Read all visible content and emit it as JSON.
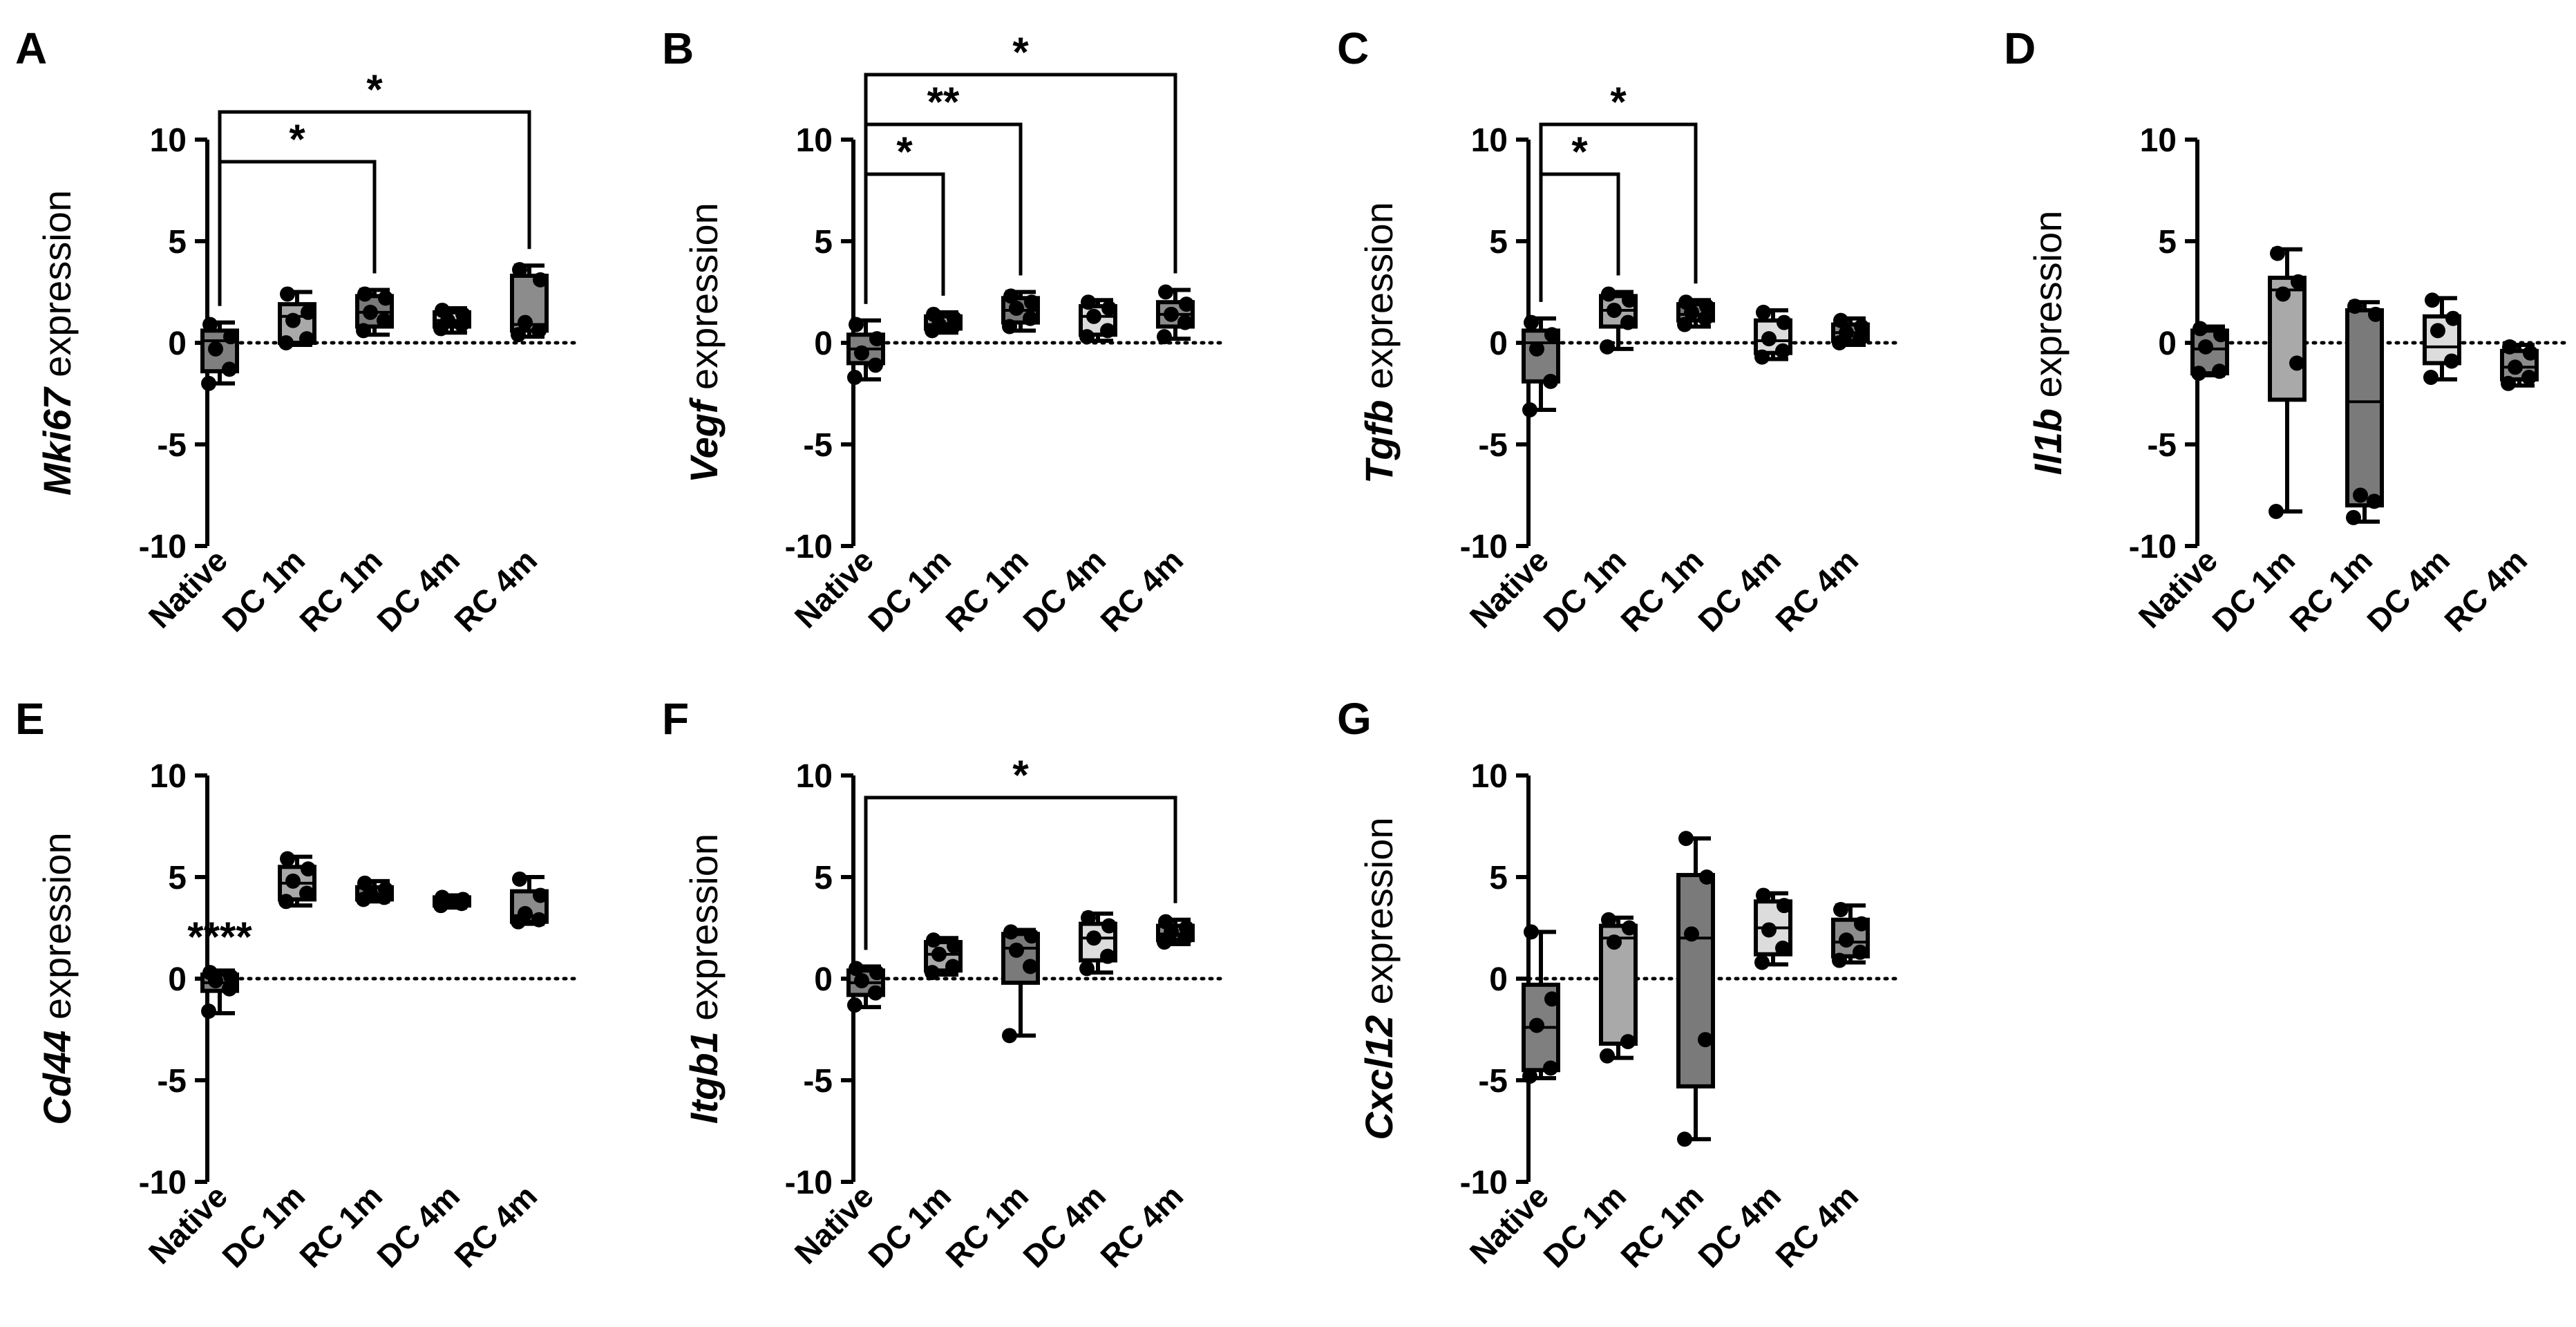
{
  "fills": {
    "Native": "#7f7f7f",
    "DC 1m": "#a9a9a9",
    "RC 1m": "#7a7a7a",
    "DC 4m": "#dcdcdc",
    "RC 4m": "#8c8c8c"
  },
  "chart_data": [
    {
      "type": "box",
      "panel": "A",
      "gene": "Mki67",
      "ylabel_suffix": " expression",
      "ylim": [
        -10,
        10
      ],
      "yticks": [
        10,
        5,
        0,
        -5,
        -10
      ],
      "categories": [
        "Native",
        "DC 1m",
        "RC 1m",
        "DC 4m",
        "RC 4m"
      ],
      "boxes": [
        {
          "min": -2.0,
          "q1": -1.4,
          "median": 0.1,
          "q3": 0.6,
          "max": 1.0,
          "points": [
            -2.0,
            -1.3,
            -0.3,
            0.3,
            0.9
          ]
        },
        {
          "min": -0.1,
          "q1": 0.0,
          "median": 1.3,
          "q3": 1.9,
          "max": 2.5,
          "points": [
            0.0,
            0.2,
            1.1,
            1.5,
            2.4
          ]
        },
        {
          "min": 0.4,
          "q1": 0.8,
          "median": 1.5,
          "q3": 2.3,
          "max": 2.6,
          "points": [
            0.6,
            1.1,
            1.5,
            2.2,
            2.4
          ]
        },
        {
          "min": 0.5,
          "q1": 0.8,
          "median": 1.1,
          "q3": 1.5,
          "max": 1.7,
          "points": [
            0.7,
            0.9,
            1.1,
            1.4,
            1.6
          ]
        },
        {
          "min": 0.3,
          "q1": 0.6,
          "median": 0.9,
          "q3": 3.3,
          "max": 3.8,
          "points": [
            0.4,
            0.6,
            1.0,
            3.1,
            3.6
          ]
        }
      ],
      "significance": [
        {
          "from": 0,
          "to": 2,
          "level": 6,
          "label": "*"
        },
        {
          "from": 0,
          "to": 4,
          "level": 10,
          "label": "*"
        }
      ]
    },
    {
      "type": "box",
      "panel": "B",
      "gene": "Vegf",
      "ylabel_suffix": " expression",
      "ylim": [
        -10,
        10
      ],
      "yticks": [
        10,
        5,
        0,
        -5,
        -10
      ],
      "categories": [
        "Native",
        "DC 1m",
        "RC 1m",
        "DC 4m",
        "RC 4m"
      ],
      "boxes": [
        {
          "min": -1.8,
          "q1": -1.0,
          "median": -0.3,
          "q3": 0.4,
          "max": 1.1,
          "points": [
            -1.7,
            -1.1,
            -0.5,
            0.2,
            0.9
          ]
        },
        {
          "min": 0.5,
          "q1": 0.7,
          "median": 0.9,
          "q3": 1.3,
          "max": 1.5,
          "points": [
            0.6,
            0.8,
            0.9,
            1.2,
            1.4
          ]
        },
        {
          "min": 0.6,
          "q1": 1.0,
          "median": 1.6,
          "q3": 2.2,
          "max": 2.5,
          "points": [
            0.8,
            1.2,
            1.7,
            2.0,
            2.3
          ]
        },
        {
          "min": 0.1,
          "q1": 0.4,
          "median": 1.3,
          "q3": 1.8,
          "max": 2.1,
          "points": [
            0.3,
            0.6,
            1.3,
            1.7,
            2.0
          ]
        },
        {
          "min": 0.2,
          "q1": 0.8,
          "median": 1.4,
          "q3": 2.0,
          "max": 2.6,
          "points": [
            0.3,
            1.0,
            1.4,
            1.9,
            2.5
          ]
        }
      ],
      "significance": [
        {
          "from": 0,
          "to": 1,
          "level": 5,
          "label": "*"
        },
        {
          "from": 0,
          "to": 2,
          "level": 9,
          "label": "**"
        },
        {
          "from": 0,
          "to": 4,
          "level": 13,
          "label": "*"
        }
      ]
    },
    {
      "type": "box",
      "panel": "C",
      "gene": "Tgfb",
      "ylabel_suffix": " expression",
      "ylim": [
        -10,
        10
      ],
      "yticks": [
        10,
        5,
        0,
        -5,
        -10
      ],
      "categories": [
        "Native",
        "DC 1m",
        "RC 1m",
        "DC 4m",
        "RC 4m"
      ],
      "boxes": [
        {
          "min": -3.3,
          "q1": -1.9,
          "median": 0.0,
          "q3": 0.6,
          "max": 1.2,
          "points": [
            -3.3,
            -1.9,
            -0.3,
            0.4,
            1.0
          ]
        },
        {
          "min": -0.3,
          "q1": 0.8,
          "median": 1.6,
          "q3": 2.3,
          "max": 2.5,
          "points": [
            -0.2,
            1.0,
            1.6,
            2.1,
            2.4
          ]
        },
        {
          "min": 0.8,
          "q1": 1.1,
          "median": 1.4,
          "q3": 1.9,
          "max": 2.1,
          "points": [
            0.9,
            1.2,
            1.5,
            1.8,
            2.0
          ]
        },
        {
          "min": -0.8,
          "q1": -0.5,
          "median": 0.1,
          "q3": 1.1,
          "max": 1.6,
          "points": [
            -0.7,
            -0.4,
            0.2,
            1.0,
            1.5
          ]
        },
        {
          "min": -0.1,
          "q1": 0.1,
          "median": 0.5,
          "q3": 0.9,
          "max": 1.2,
          "points": [
            0.0,
            0.2,
            0.5,
            0.8,
            1.1
          ]
        }
      ],
      "significance": [
        {
          "from": 0,
          "to": 1,
          "level": 5,
          "label": "*"
        },
        {
          "from": 0,
          "to": 2,
          "level": 9,
          "label": "*"
        }
      ]
    },
    {
      "type": "box",
      "panel": "D",
      "gene": "Il1b",
      "ylabel_suffix": " expression",
      "ylim": [
        -10,
        10
      ],
      "yticks": [
        10,
        5,
        0,
        -5,
        -10
      ],
      "categories": [
        "Native",
        "DC 1m",
        "RC 1m",
        "DC 4m",
        "RC 4m"
      ],
      "boxes": [
        {
          "min": -1.6,
          "q1": -1.5,
          "median": -0.3,
          "q3": 0.6,
          "max": 0.8,
          "points": [
            -1.5,
            -1.4,
            -0.2,
            0.4,
            0.7
          ]
        },
        {
          "min": -8.3,
          "q1": -2.8,
          "median": 2.6,
          "q3": 3.2,
          "max": 4.6,
          "points": [
            -8.3,
            -1.0,
            2.4,
            3.0,
            4.4
          ]
        },
        {
          "min": -8.8,
          "q1": -8.0,
          "median": -2.9,
          "q3": 1.6,
          "max": 2.0,
          "points": [
            -8.6,
            -7.8,
            -7.5,
            1.4,
            1.8
          ]
        },
        {
          "min": -1.8,
          "q1": -1.0,
          "median": -0.2,
          "q3": 1.3,
          "max": 2.2,
          "points": [
            -1.7,
            -0.9,
            0.6,
            1.2,
            2.1
          ]
        },
        {
          "min": -2.1,
          "q1": -1.8,
          "median": -1.2,
          "q3": -0.4,
          "max": -0.1,
          "points": [
            -2.0,
            -1.7,
            -1.2,
            -0.5,
            -0.2
          ]
        }
      ],
      "significance": []
    },
    {
      "type": "box",
      "panel": "E",
      "gene": "Cd44",
      "ylabel_suffix": " expression",
      "ylim": [
        -10,
        10
      ],
      "yticks": [
        10,
        5,
        0,
        -5,
        -10
      ],
      "categories": [
        "Native",
        "DC 1m",
        "RC 1m",
        "DC 4m",
        "RC 4m"
      ],
      "boxes": [
        {
          "min": -1.7,
          "q1": -0.6,
          "median": -0.2,
          "q3": 0.2,
          "max": 0.4,
          "points": [
            -1.6,
            -0.5,
            -0.1,
            0.1,
            0.3
          ]
        },
        {
          "min": 3.6,
          "q1": 3.9,
          "median": 4.7,
          "q3": 5.5,
          "max": 6.0,
          "points": [
            3.8,
            4.2,
            4.8,
            5.4,
            5.9
          ]
        },
        {
          "min": 3.8,
          "q1": 3.9,
          "median": 4.1,
          "q3": 4.5,
          "max": 4.8,
          "points": [
            3.9,
            4.0,
            4.2,
            4.4,
            4.7
          ]
        },
        {
          "min": 3.5,
          "q1": 3.6,
          "median": 3.8,
          "q3": 4.0,
          "max": 4.1,
          "points": [
            3.6,
            3.7,
            3.8,
            3.9,
            4.0
          ]
        },
        {
          "min": 2.7,
          "q1": 2.8,
          "median": 3.1,
          "q3": 4.3,
          "max": 5.0,
          "points": [
            2.8,
            2.9,
            3.2,
            4.1,
            4.9
          ]
        }
      ],
      "significance": [
        {
          "from": 0,
          "to": 0,
          "level": 0,
          "label": "****",
          "above_value": 0.4
        }
      ]
    },
    {
      "type": "box",
      "panel": "F",
      "gene": "Itgb1",
      "ylabel_suffix": " expression",
      "ylim": [
        -10,
        10
      ],
      "yticks": [
        10,
        5,
        0,
        -5,
        -10
      ],
      "categories": [
        "Native",
        "DC 1m",
        "RC 1m",
        "DC 4m",
        "RC 4m"
      ],
      "boxes": [
        {
          "min": -1.4,
          "q1": -0.8,
          "median": -0.2,
          "q3": 0.4,
          "max": 0.6,
          "points": [
            -1.3,
            -0.7,
            -0.1,
            0.3,
            0.5
          ]
        },
        {
          "min": 0.2,
          "q1": 0.4,
          "median": 1.2,
          "q3": 1.8,
          "max": 2.0,
          "points": [
            0.3,
            0.6,
            1.2,
            1.6,
            1.9
          ]
        },
        {
          "min": -2.8,
          "q1": -0.2,
          "median": 1.5,
          "q3": 2.2,
          "max": 2.4,
          "points": [
            -2.8,
            0.6,
            1.4,
            2.1,
            2.3
          ]
        },
        {
          "min": 0.3,
          "q1": 0.9,
          "median": 2.0,
          "q3": 2.7,
          "max": 3.2,
          "points": [
            0.5,
            1.1,
            2.0,
            2.6,
            3.0
          ]
        },
        {
          "min": 1.7,
          "q1": 1.9,
          "median": 2.2,
          "q3": 2.6,
          "max": 2.9,
          "points": [
            1.8,
            2.0,
            2.3,
            2.5,
            2.8
          ]
        }
      ],
      "significance": [
        {
          "from": 0,
          "to": 4,
          "level": 6,
          "label": "*"
        }
      ]
    },
    {
      "type": "box",
      "panel": "G",
      "gene": "Cxcl12",
      "ylabel_suffix": " expression",
      "ylim": [
        -10,
        10
      ],
      "yticks": [
        10,
        5,
        0,
        -5,
        -10
      ],
      "categories": [
        "Native",
        "DC 1m",
        "RC 1m",
        "DC 4m",
        "RC 4m"
      ],
      "boxes": [
        {
          "min": -4.9,
          "q1": -4.5,
          "median": -2.4,
          "q3": -0.3,
          "max": 2.3,
          "points": [
            -4.8,
            -4.4,
            -2.3,
            -1.0,
            2.3
          ]
        },
        {
          "min": -3.9,
          "q1": -3.2,
          "median": 2.0,
          "q3": 2.6,
          "max": 3.0,
          "points": [
            -3.8,
            -3.1,
            1.8,
            2.5,
            2.9
          ]
        },
        {
          "min": -7.9,
          "q1": -5.3,
          "median": 2.0,
          "q3": 5.1,
          "max": 6.9,
          "points": [
            -7.9,
            -3.0,
            2.2,
            5.0,
            6.9
          ]
        },
        {
          "min": 0.7,
          "q1": 1.2,
          "median": 2.5,
          "q3": 3.8,
          "max": 4.2,
          "points": [
            0.8,
            1.5,
            2.4,
            3.6,
            4.1
          ]
        },
        {
          "min": 0.8,
          "q1": 1.1,
          "median": 1.8,
          "q3": 2.9,
          "max": 3.6,
          "points": [
            0.9,
            1.3,
            1.9,
            2.7,
            3.4
          ]
        }
      ],
      "significance": []
    }
  ]
}
